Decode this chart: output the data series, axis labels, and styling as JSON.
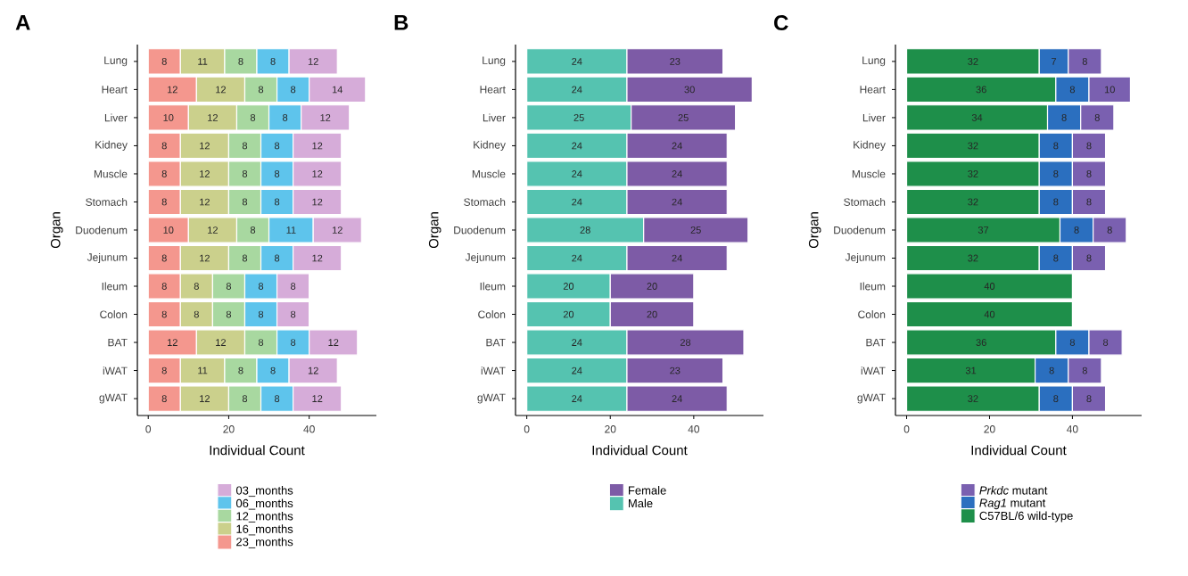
{
  "chart_data": [
    {
      "type": "bar",
      "orientation": "horizontal",
      "stacked": true,
      "title": "A",
      "xlabel": "Individual Count",
      "ylabel": "Organ",
      "legend": "bottom",
      "data_labels": true,
      "categories": [
        "Lung",
        "Heart",
        "Liver",
        "Kidney",
        "Muscle",
        "Stomach",
        "Duodenum",
        "Jejunum",
        "Ileum",
        "Colon",
        "BAT",
        "iWAT",
        "gWAT"
      ],
      "xlim": [
        -2.7,
        56.7
      ],
      "xticks": [
        0,
        20,
        40
      ],
      "series": [
        {
          "name": "23_months",
          "color": "#f4978e",
          "values": [
            8,
            12,
            10,
            8,
            8,
            8,
            10,
            8,
            8,
            8,
            12,
            8,
            8
          ]
        },
        {
          "name": "16_months",
          "color": "#cbd08c",
          "values": [
            11,
            12,
            12,
            12,
            12,
            12,
            12,
            12,
            8,
            8,
            12,
            11,
            12
          ]
        },
        {
          "name": "12_months",
          "color": "#a8d8a0",
          "values": [
            8,
            8,
            8,
            8,
            8,
            8,
            8,
            8,
            8,
            8,
            8,
            8,
            8
          ]
        },
        {
          "name": "06_months",
          "color": "#5ec4ec",
          "values": [
            8,
            8,
            8,
            8,
            8,
            8,
            11,
            8,
            8,
            8,
            8,
            8,
            8
          ]
        },
        {
          "name": "03_months",
          "color": "#d6acd9",
          "values": [
            12,
            14,
            12,
            12,
            12,
            12,
            12,
            12,
            8,
            8,
            12,
            12,
            12
          ]
        }
      ]
    },
    {
      "type": "bar",
      "orientation": "horizontal",
      "stacked": true,
      "title": "B",
      "xlabel": "Individual Count",
      "ylabel": "Organ",
      "legend": "bottom",
      "data_labels": true,
      "categories": [
        "Lung",
        "Heart",
        "Liver",
        "Kidney",
        "Muscle",
        "Stomach",
        "Duodenum",
        "Jejunum",
        "Ileum",
        "Colon",
        "BAT",
        "iWAT",
        "gWAT"
      ],
      "xlim": [
        -2.7,
        56.7
      ],
      "xticks": [
        0,
        20,
        40
      ],
      "series": [
        {
          "name": "Male",
          "color": "#55c3b0",
          "values": [
            24,
            24,
            25,
            24,
            24,
            24,
            28,
            24,
            20,
            20,
            24,
            24,
            24
          ]
        },
        {
          "name": "Female",
          "color": "#7d5ba6",
          "values": [
            23,
            30,
            25,
            24,
            24,
            24,
            25,
            24,
            20,
            20,
            28,
            23,
            24
          ]
        }
      ]
    },
    {
      "type": "bar",
      "orientation": "horizontal",
      "stacked": true,
      "title": "C",
      "xlabel": "Individual Count",
      "ylabel": "Organ",
      "legend": "bottom",
      "data_labels": true,
      "categories": [
        "Lung",
        "Heart",
        "Liver",
        "Kidney",
        "Muscle",
        "Stomach",
        "Duodenum",
        "Jejunum",
        "Ileum",
        "Colon",
        "BAT",
        "iWAT",
        "gWAT"
      ],
      "xlim": [
        -2.7,
        56.7
      ],
      "xticks": [
        0,
        20,
        40
      ],
      "series": [
        {
          "name": "C57BL/6 wild-type",
          "color": "#1e8f4a",
          "values": [
            32,
            36,
            34,
            32,
            32,
            32,
            37,
            32,
            40,
            40,
            36,
            31,
            32
          ]
        },
        {
          "name": "*Rag1* mutant",
          "color": "#2b6fbf",
          "values": [
            7,
            8,
            8,
            8,
            8,
            8,
            8,
            8,
            null,
            null,
            8,
            8,
            8
          ]
        },
        {
          "name": "*Prkdc* mutant",
          "color": "#7a60b0",
          "values": [
            8,
            10,
            8,
            8,
            8,
            8,
            8,
            8,
            null,
            null,
            8,
            8,
            8
          ]
        }
      ]
    }
  ]
}
